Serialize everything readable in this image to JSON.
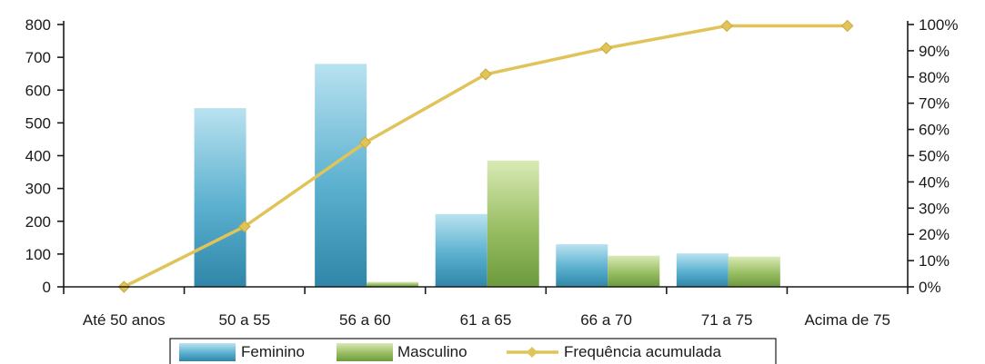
{
  "chart_data": {
    "type": "bar",
    "categories": [
      "Até 50 anos",
      "50 a 55",
      "56 a 60",
      "61 a 65",
      "66 a 70",
      "71 a 75",
      "Acima de 75"
    ],
    "series": [
      {
        "name": "Feminino",
        "kind": "bar",
        "axis": "left",
        "color": "#4ea7c6",
        "values": [
          0,
          545,
          680,
          222,
          130,
          102,
          0
        ]
      },
      {
        "name": "Masculino",
        "kind": "bar",
        "axis": "left",
        "color": "#8fb25a",
        "values": [
          0,
          0,
          15,
          385,
          95,
          92,
          0
        ]
      },
      {
        "name": "Frequência acumulada",
        "kind": "line",
        "axis": "right",
        "color": "#e0c45a",
        "values": [
          0,
          23,
          55,
          81,
          91,
          99.5,
          99.5
        ]
      }
    ],
    "y_left": {
      "min": 0,
      "max": 800,
      "ticks": [
        "0",
        "100",
        "200",
        "300",
        "400",
        "500",
        "600",
        "700",
        "800"
      ]
    },
    "y_right": {
      "min": 0,
      "max": 100,
      "ticks": [
        "0%",
        "10%",
        "20%",
        "30%",
        "40%",
        "50%",
        "60%",
        "70%",
        "80%",
        "90%",
        "100%"
      ]
    },
    "legend_position": "bottom",
    "grid": false
  }
}
